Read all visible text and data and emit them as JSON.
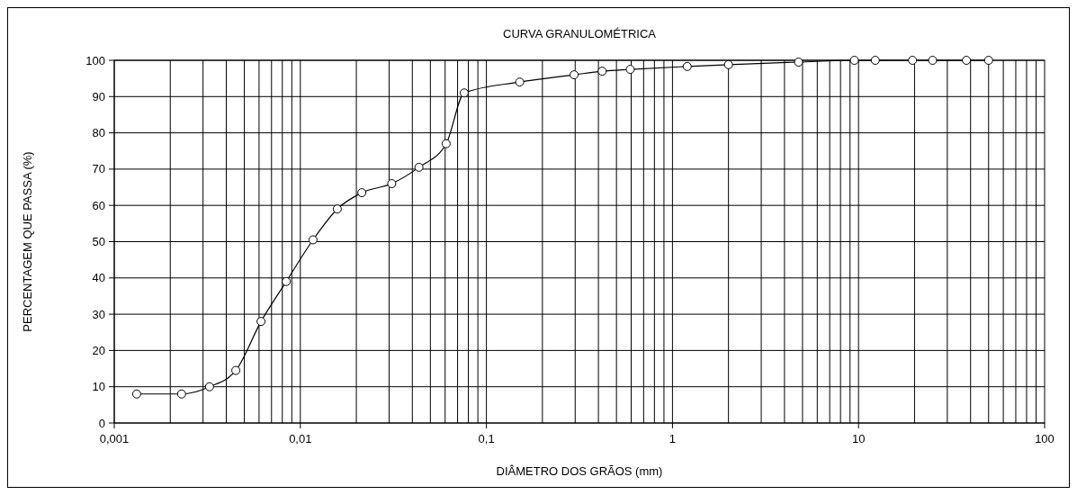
{
  "chart_data": {
    "type": "line",
    "title": "CURVA  GRANULOMÉTRICA",
    "xlabel": "DIÂMETRO  DOS GRÃOS (mm)",
    "ylabel": "PERCENTAGEM  QUE  PASSA (%)",
    "log": "x",
    "grid": true,
    "marker": "circle",
    "line_style": "solid",
    "xlim": [
      0.001,
      100
    ],
    "xticks": [
      {
        "value": 0.001,
        "label": "0,001"
      },
      {
        "value": 0.01,
        "label": "0,01"
      },
      {
        "value": 0.1,
        "label": "0,1"
      },
      1,
      10,
      100
    ],
    "ylim": [
      0,
      100
    ],
    "yticks": [
      0,
      10,
      20,
      30,
      40,
      50,
      60,
      70,
      80,
      90,
      100
    ],
    "series": [
      {
        "color": "#000000",
        "x": [
          0.00132,
          0.0023,
          0.00325,
          0.0045,
          0.00615,
          0.0084,
          0.0117,
          0.0158,
          0.0214,
          0.031,
          0.0434,
          0.0608,
          0.076,
          0.151,
          0.296,
          0.419,
          0.593,
          1.2,
          2.0,
          4.76,
          9.5,
          12.3,
          19.5,
          25,
          38,
          50
        ],
        "values": [
          8,
          8,
          10,
          14.5,
          28,
          39,
          50.5,
          59,
          63.5,
          66,
          70.5,
          77,
          91,
          94,
          96,
          97,
          97.5,
          98.3,
          98.8,
          99.5,
          100,
          100,
          100,
          100,
          100,
          100
        ]
      }
    ]
  }
}
